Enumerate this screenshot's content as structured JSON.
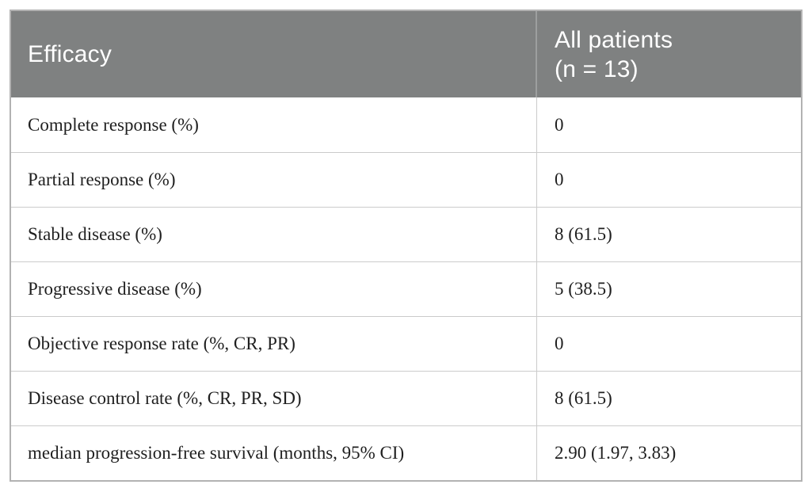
{
  "table": {
    "header": {
      "col1": "Efficacy",
      "col2_line1": "All patients",
      "col2_line2": "(n = 13)"
    },
    "rows": [
      {
        "label": "Complete response (%)",
        "value": "0"
      },
      {
        "label": "Partial response (%)",
        "value": "0"
      },
      {
        "label": "Stable disease (%)",
        "value": "8 (61.5)"
      },
      {
        "label": "Progressive disease (%)",
        "value": "5 (38.5)"
      },
      {
        "label": "Objective response rate (%, CR, PR)",
        "value": "0"
      },
      {
        "label": "Disease control rate (%, CR, PR, SD)",
        "value": "8 (61.5)"
      },
      {
        "label": "median progression-free survival (months, 95% CI)",
        "value": "2.90 (1.97, 3.83)"
      }
    ]
  },
  "colors": {
    "header_bg": "#7f8181",
    "header_text": "#ffffff",
    "body_text": "#1f1f1f",
    "outer_border": "#b2b2b2",
    "row_divider": "#cbcbcb"
  },
  "chart_data": {
    "type": "table",
    "title": "Efficacy",
    "columns": [
      "Efficacy",
      "All patients (n = 13)"
    ],
    "rows": [
      [
        "Complete response (%)",
        "0"
      ],
      [
        "Partial response (%)",
        "0"
      ],
      [
        "Stable disease (%)",
        "8 (61.5)"
      ],
      [
        "Progressive disease (%)",
        "5 (38.5)"
      ],
      [
        "Objective response rate (%, CR, PR)",
        "0"
      ],
      [
        "Disease control rate (%, CR, PR, SD)",
        "8 (61.5)"
      ],
      [
        "median progression-free survival (months, 95% CI)",
        "2.90 (1.97, 3.83)"
      ]
    ]
  }
}
